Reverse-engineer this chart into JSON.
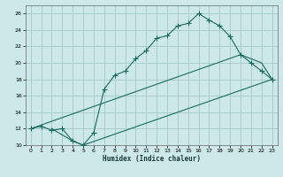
{
  "xlabel": "Humidex (Indice chaleur)",
  "ylabel": "",
  "bg_color": "#cce8e8",
  "grid_color": "#aacccc",
  "line_color": "#1a6b60",
  "xlim": [
    -0.5,
    23.5
  ],
  "ylim": [
    10,
    27
  ],
  "xticks": [
    0,
    1,
    2,
    3,
    4,
    5,
    6,
    7,
    8,
    9,
    10,
    11,
    12,
    13,
    14,
    15,
    16,
    17,
    18,
    19,
    20,
    21,
    22,
    23
  ],
  "yticks": [
    10,
    12,
    14,
    16,
    18,
    20,
    22,
    24,
    26
  ],
  "line1_x": [
    0,
    1,
    2,
    3,
    4,
    5,
    6,
    7,
    8,
    9,
    10,
    11,
    12,
    13,
    14,
    15,
    16,
    17,
    18,
    19,
    20,
    21,
    22,
    23
  ],
  "line1_y": [
    12,
    12.3,
    11.8,
    12.0,
    10.5,
    10.0,
    11.5,
    16.8,
    18.5,
    19.0,
    20.5,
    21.5,
    23.0,
    23.3,
    24.5,
    24.8,
    26.0,
    25.2,
    24.5,
    23.2,
    21.0,
    20.0,
    19.0,
    18.0
  ],
  "line2_x": [
    0,
    20,
    22,
    23
  ],
  "line2_y": [
    12,
    21,
    20,
    18
  ],
  "line3_x": [
    2,
    4,
    5,
    23
  ],
  "line3_y": [
    12,
    10.5,
    10.0,
    18
  ]
}
